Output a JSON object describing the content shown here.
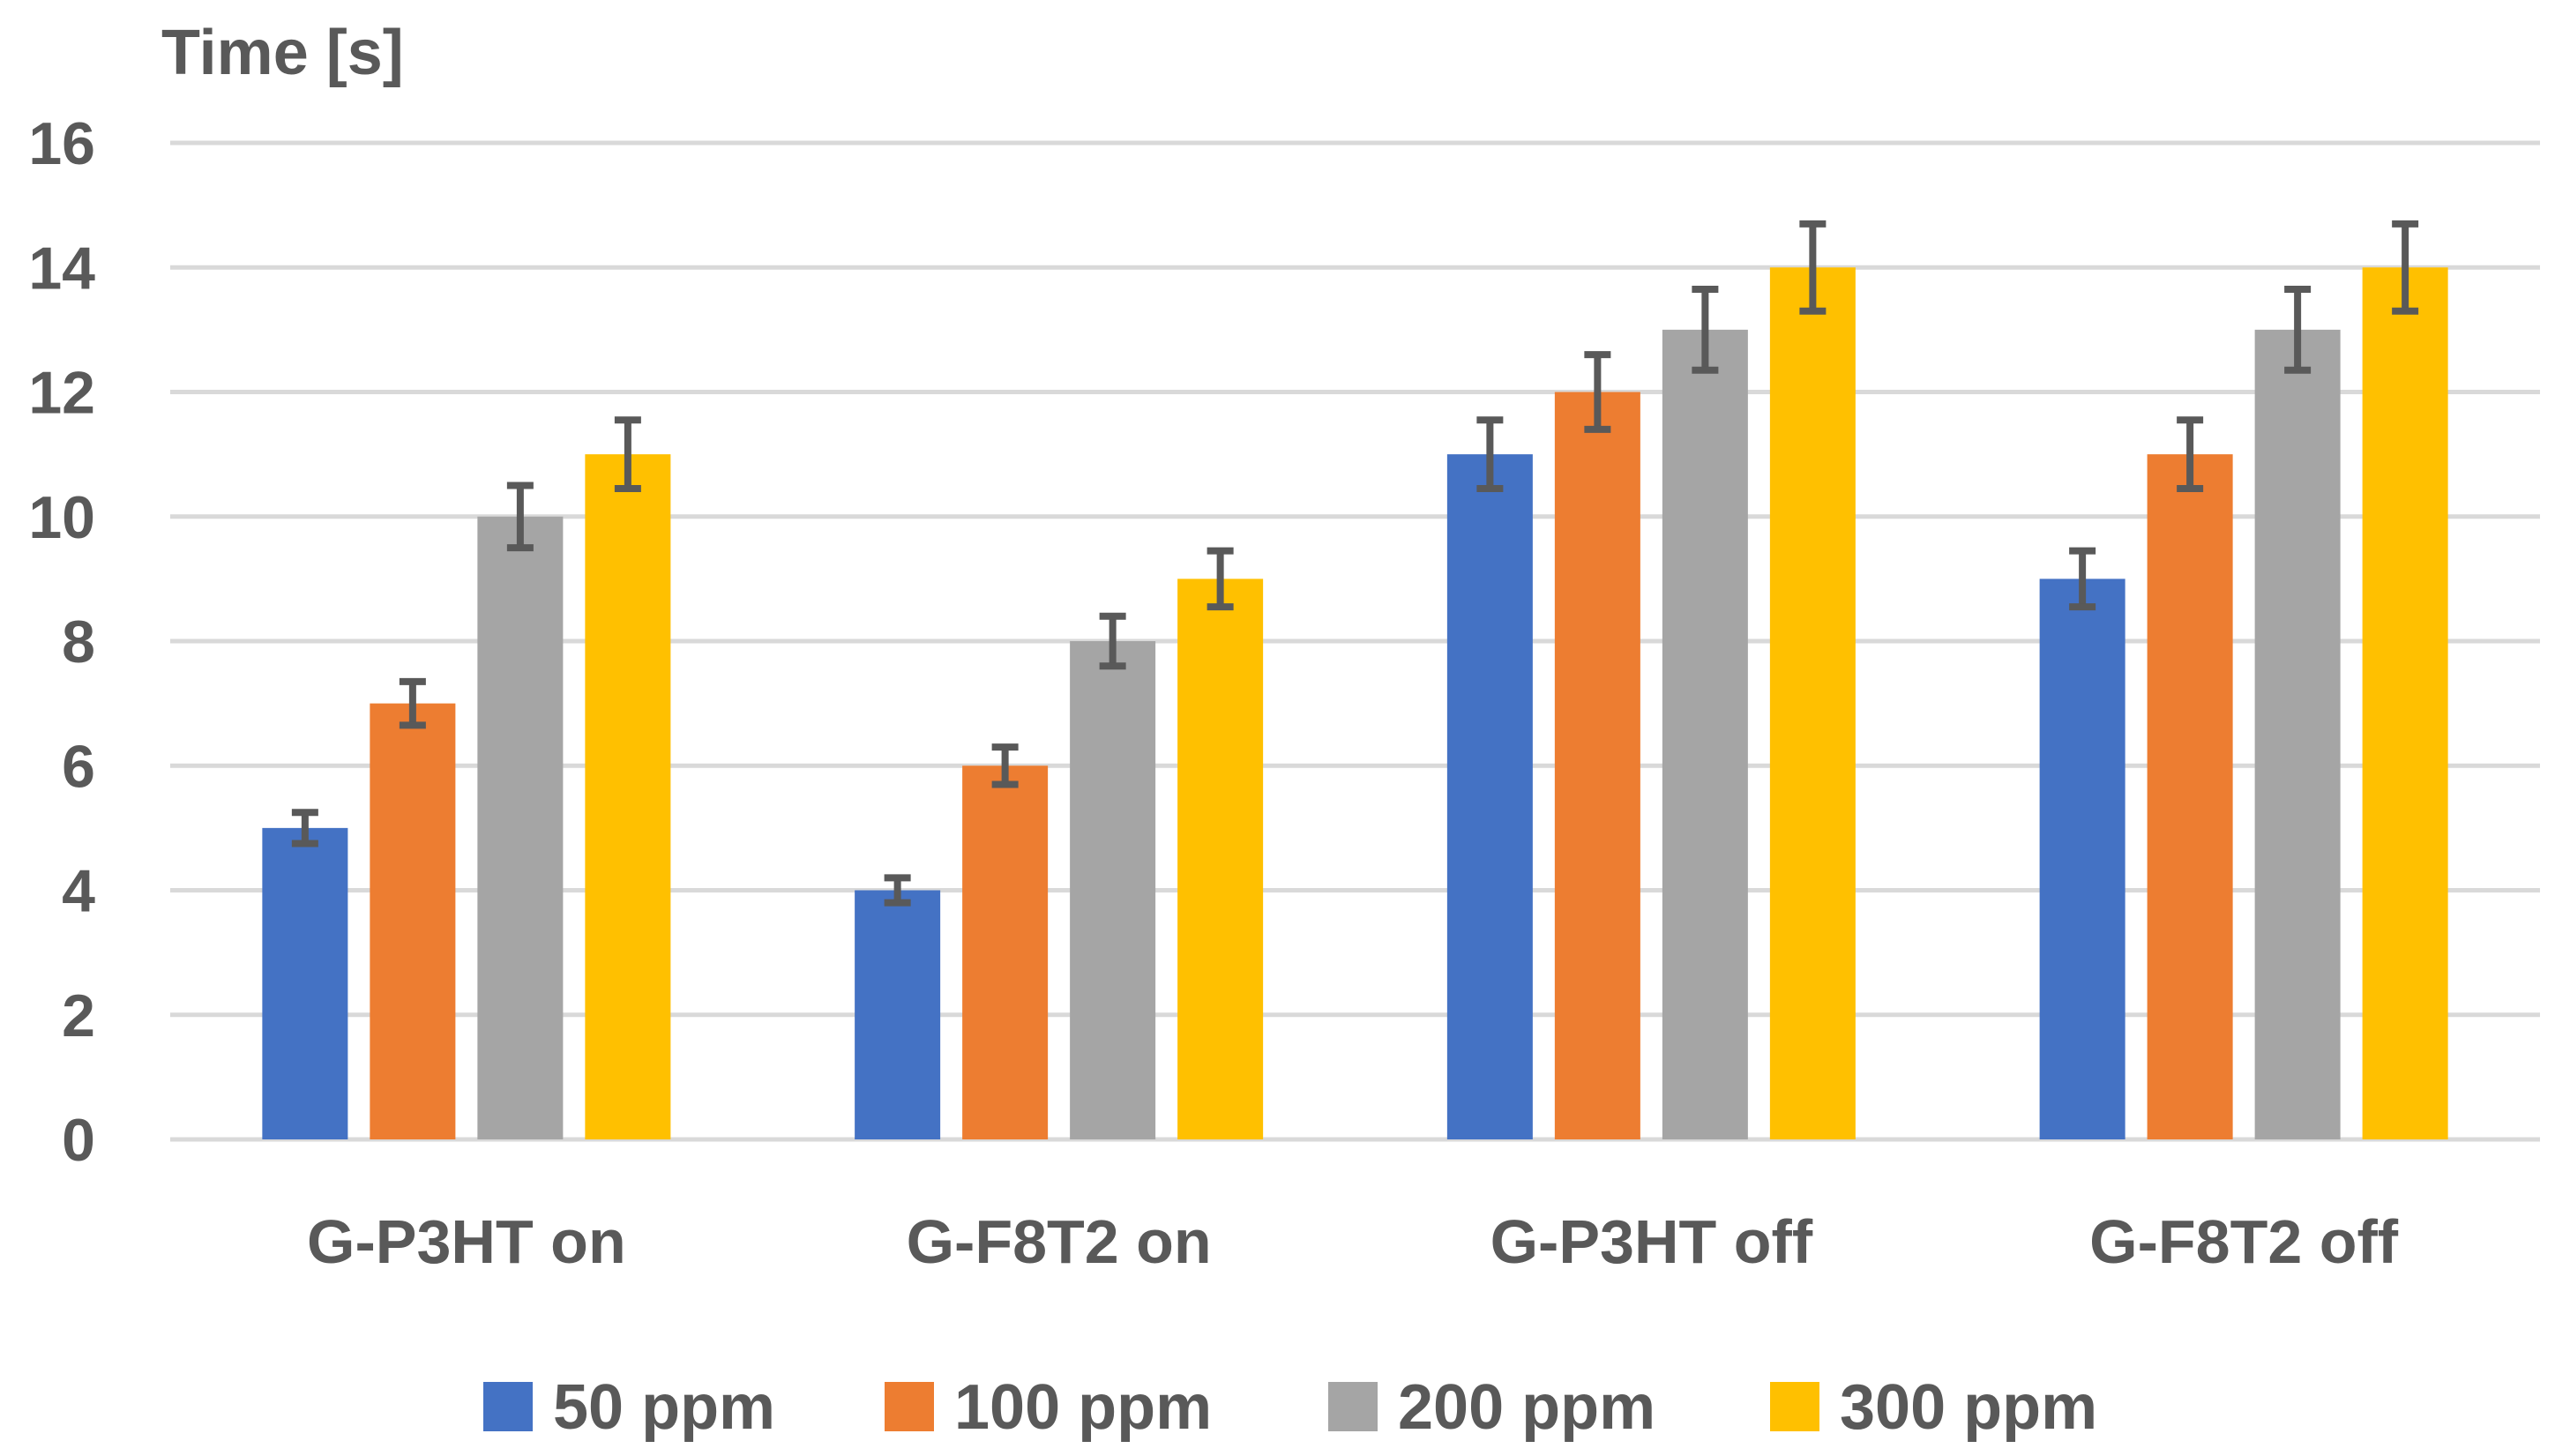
{
  "chart_data": {
    "type": "bar",
    "ylabel": "Time [s]",
    "xlabel": "",
    "ylim": [
      0,
      16
    ],
    "yticks": [
      0,
      2,
      4,
      6,
      8,
      10,
      12,
      14,
      16
    ],
    "grid": true,
    "legend_position": "bottom",
    "categories": [
      "G-P3HT on",
      "G-F8T2 on",
      "G-P3HT off",
      "G-F8T2 off"
    ],
    "series": [
      {
        "name": "50 ppm",
        "color": "#4472C4",
        "values": [
          5,
          4,
          11,
          9
        ],
        "errors": [
          0.25,
          0.2,
          0.55,
          0.45
        ]
      },
      {
        "name": "100 ppm",
        "color": "#ED7D31",
        "values": [
          7,
          6,
          12,
          11
        ],
        "errors": [
          0.35,
          0.3,
          0.6,
          0.55
        ]
      },
      {
        "name": "200 ppm",
        "color": "#A5A5A5",
        "values": [
          10,
          8,
          13,
          13
        ],
        "errors": [
          0.5,
          0.4,
          0.65,
          0.65
        ]
      },
      {
        "name": "300 ppm",
        "color": "#FFC000",
        "values": [
          11,
          9,
          14,
          14
        ],
        "errors": [
          0.55,
          0.45,
          0.7,
          0.7
        ]
      }
    ]
  }
}
